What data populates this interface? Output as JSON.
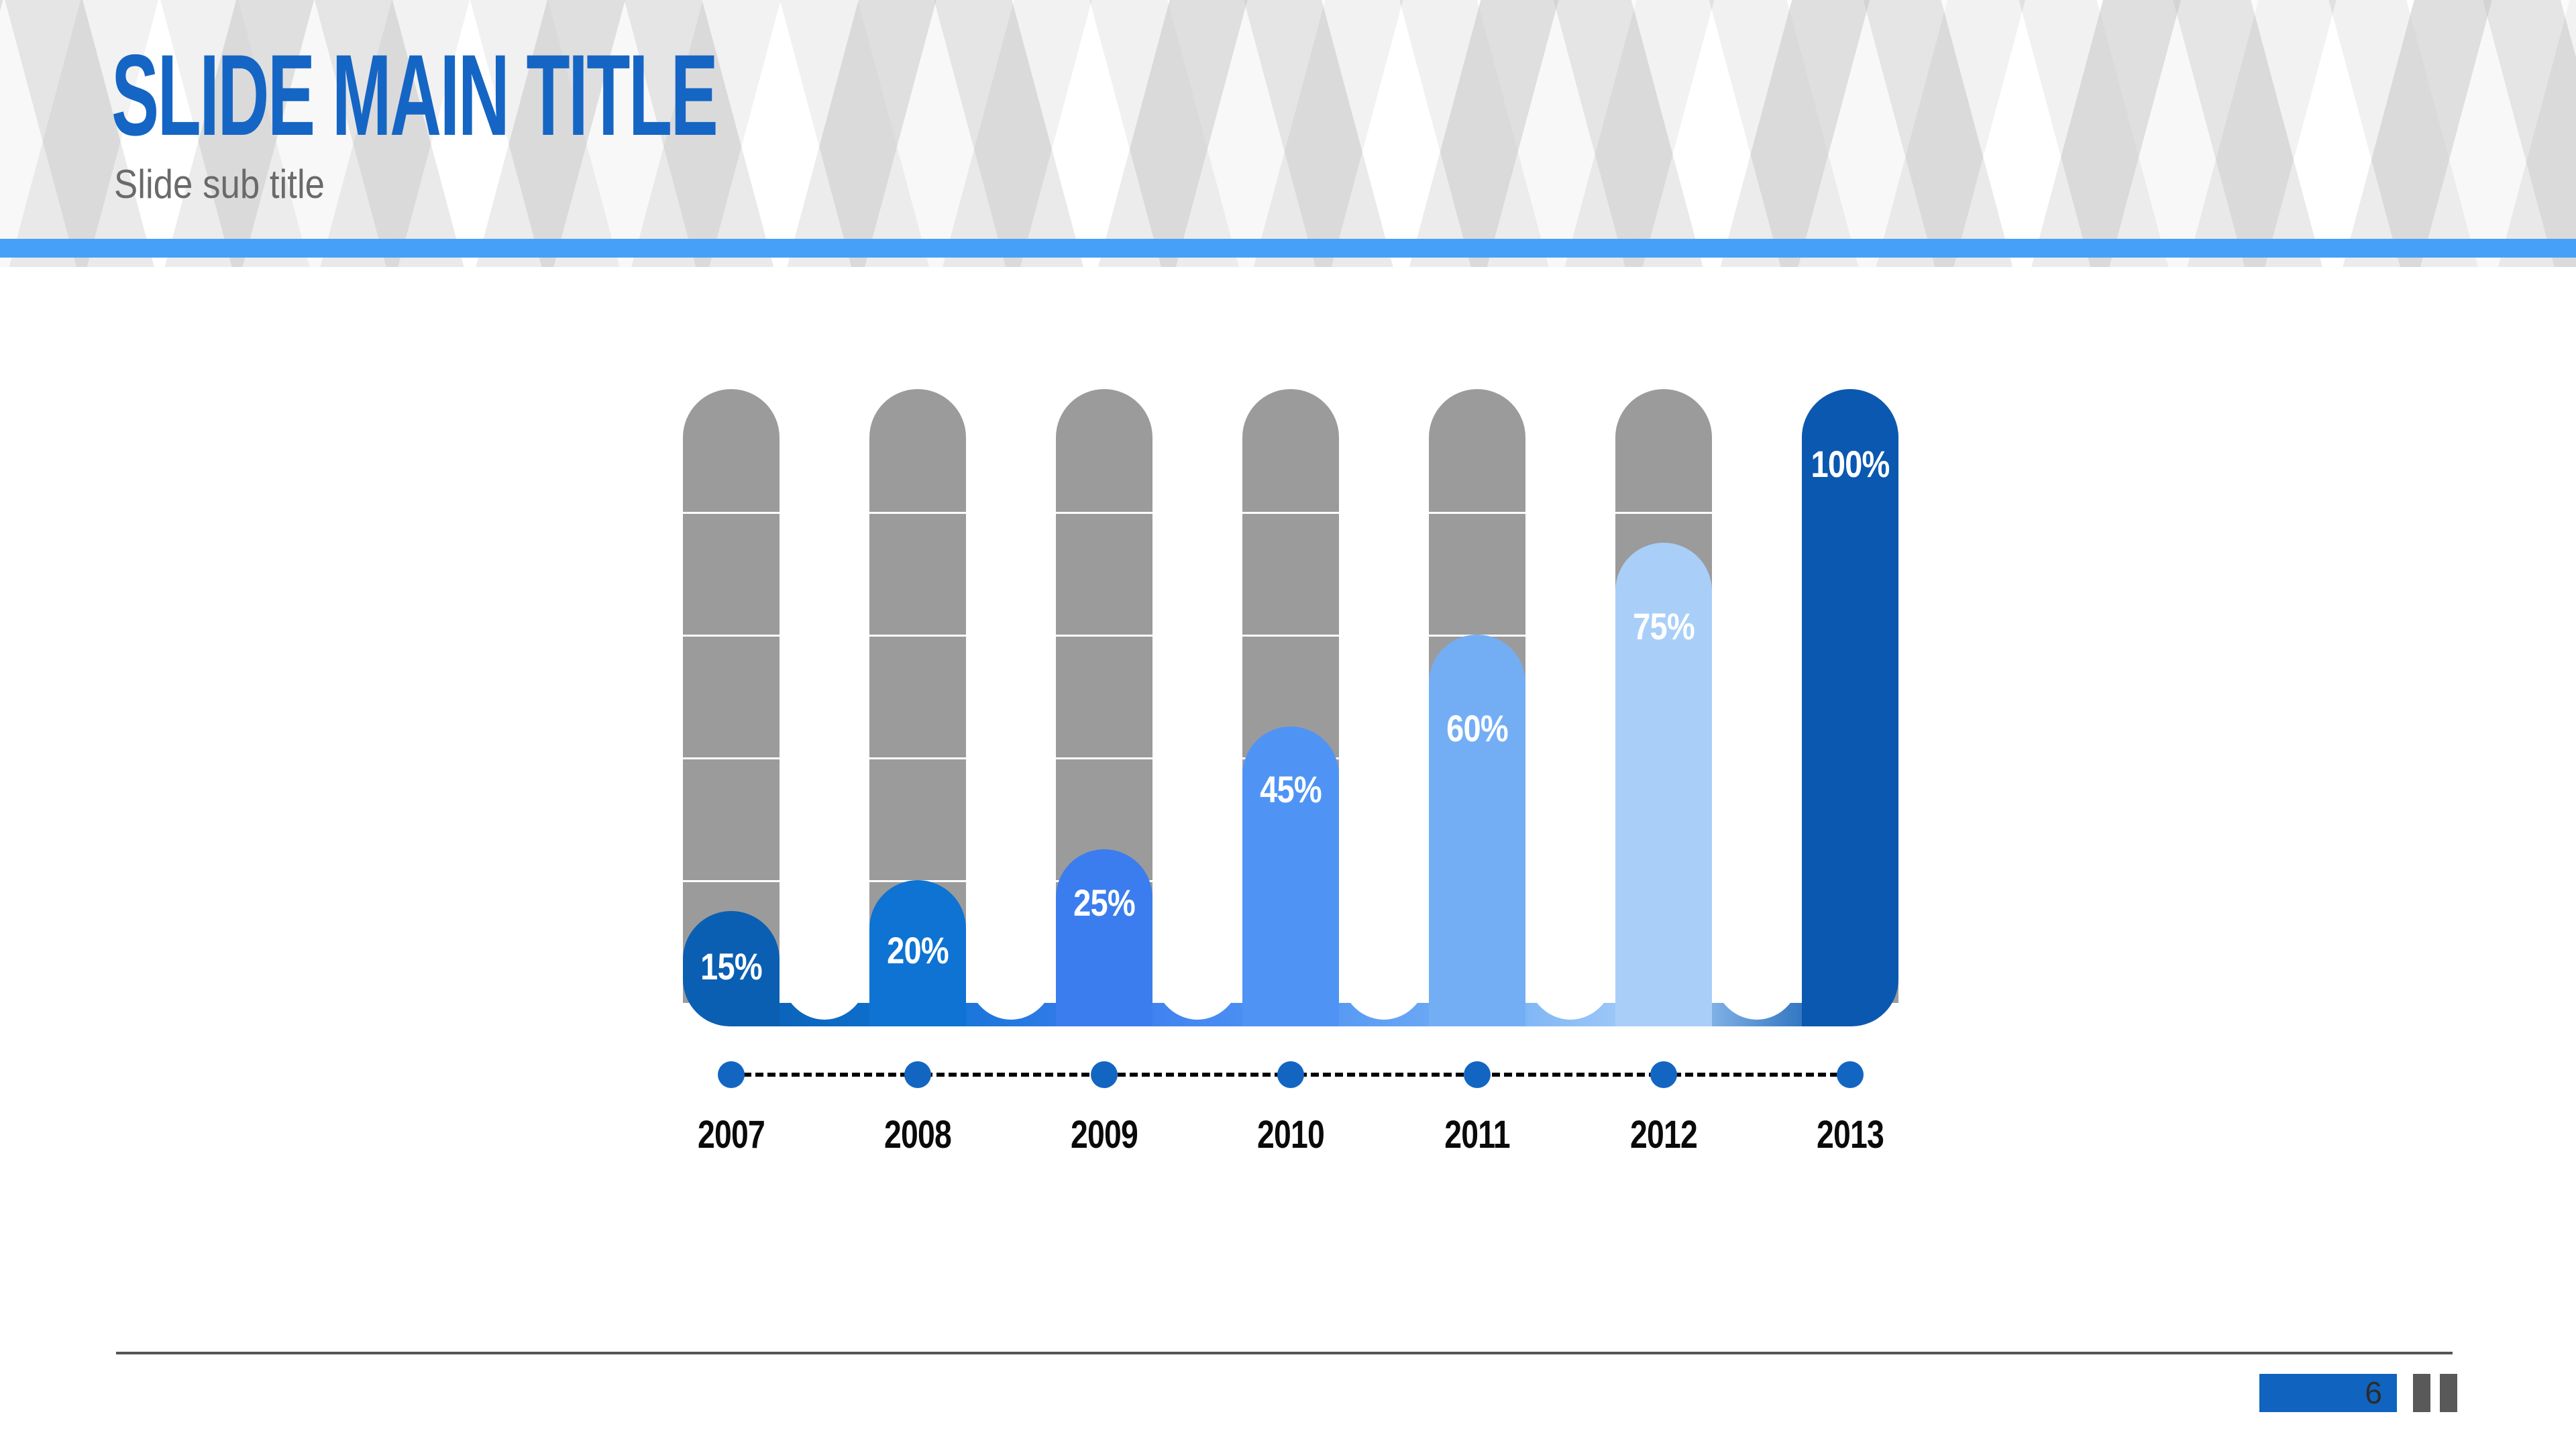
{
  "slide": {
    "title": "SLIDE MAIN TITLE",
    "subtitle": "Slide sub title",
    "title_color": "#1565C4",
    "subtitle_color": "#6A6A6A",
    "accent_bar_color": "#47A0F8"
  },
  "chart_data": {
    "type": "bar",
    "title": "",
    "categories": [
      "2007",
      "2008",
      "2009",
      "2010",
      "2011",
      "2012",
      "2013"
    ],
    "values": [
      15,
      20,
      25,
      45,
      60,
      75,
      100
    ],
    "labels": [
      "15%",
      "20%",
      "25%",
      "45%",
      "60%",
      "75%",
      "100%"
    ],
    "unit": "%",
    "ylim": [
      0,
      100
    ],
    "bar_colors": [
      "#0A5FB3",
      "#0E73D2",
      "#3B7DEE",
      "#4F94F4",
      "#73AEF5",
      "#A9CFF8",
      "#0B58B0"
    ],
    "track_color": "#9B9B9B",
    "track_segments": 5,
    "grid": "segmented-track",
    "legend_position": "none",
    "value_label_color": "#FFFFFF",
    "category_label_color": "#0A0A0A",
    "timeline": {
      "dot_color": "#1266C2",
      "line_color": "#000000",
      "line_style": "dashed"
    }
  },
  "footer": {
    "page_number": "6",
    "page_badge_color": "#1063BE",
    "marker_color": "#595959",
    "divider_color": "#545454"
  }
}
